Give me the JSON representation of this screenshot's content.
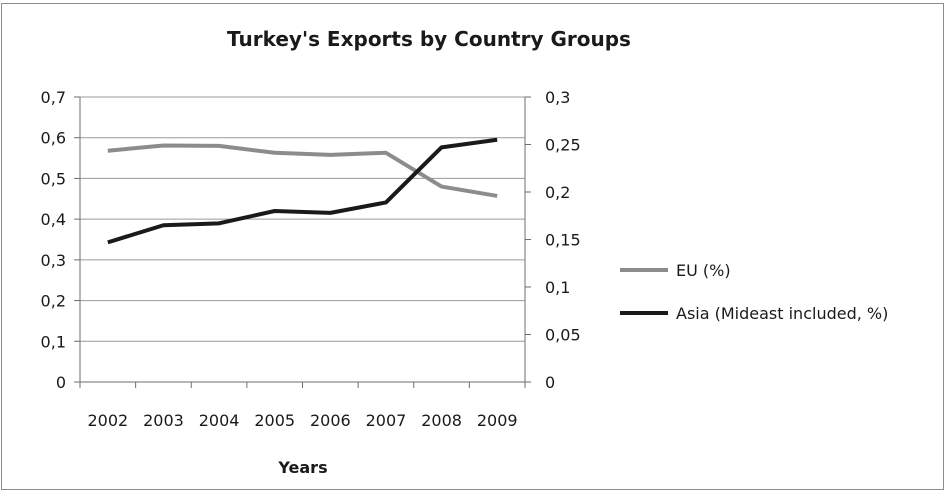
{
  "chart_data": {
    "type": "line",
    "title": "Turkey's Exports by Country Groups",
    "xlabel": "Years",
    "ylabel": "",
    "y2label": "",
    "categories": [
      "2002",
      "2003",
      "2004",
      "2005",
      "2006",
      "2007",
      "2008",
      "2009"
    ],
    "ylim": [
      0,
      0.7
    ],
    "y2lim": [
      0,
      0.3
    ],
    "yticks": [
      0,
      0.1,
      0.2,
      0.3,
      0.4,
      0.5,
      0.6,
      0.7
    ],
    "yticklabels": [
      "0",
      "0,1",
      "0,2",
      "0,3",
      "0,4",
      "0,5",
      "0,6",
      "0,7"
    ],
    "y2ticks": [
      0,
      0.05,
      0.1,
      0.15,
      0.2,
      0.25,
      0.3
    ],
    "y2ticklabels": [
      "0",
      "0,05",
      "0,1",
      "0,15",
      "0,2",
      "0,25",
      "0,3"
    ],
    "grid": true,
    "legend_position": "right",
    "series": [
      {
        "name": "EU (%)",
        "axis": "left",
        "color": "#8c8c8c",
        "values": [
          0.568,
          0.581,
          0.58,
          0.563,
          0.558,
          0.563,
          0.48,
          0.457
        ]
      },
      {
        "name": "Asia (Mideast included, %)",
        "axis": "right",
        "color": "#1a1a1a",
        "values": [
          0.147,
          0.165,
          0.167,
          0.18,
          0.178,
          0.189,
          0.247,
          0.255
        ]
      }
    ]
  }
}
